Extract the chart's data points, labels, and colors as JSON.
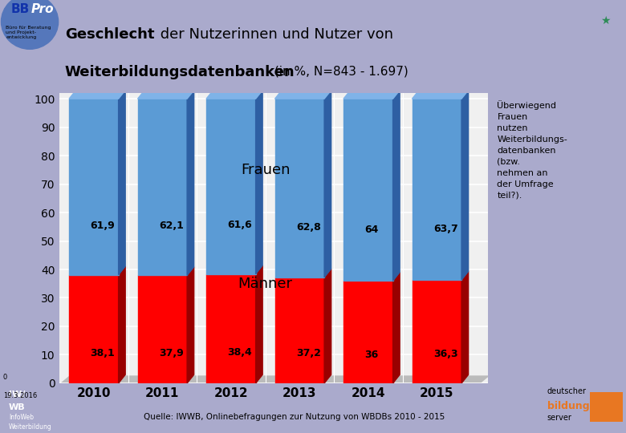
{
  "years": [
    "2010",
    "2011",
    "2012",
    "2013",
    "2014",
    "2015"
  ],
  "frauen": [
    61.9,
    62.1,
    61.6,
    62.8,
    64.0,
    63.7
  ],
  "maenner": [
    38.1,
    37.9,
    38.4,
    37.2,
    36.0,
    36.3
  ],
  "frauen_labels": [
    "61,9",
    "62,1",
    "61,6",
    "62,8",
    "64",
    "63,7"
  ],
  "maenner_labels": [
    "38,1",
    "37,9",
    "38,4",
    "37,2",
    "36",
    "36,3"
  ],
  "bar_color_frauen_front": "#5B9BD5",
  "bar_color_frauen_side": "#2E5FA3",
  "bar_color_frauen_top": "#7FB3E8",
  "bar_color_maenner_front": "#FF0000",
  "bar_color_maenner_side": "#990000",
  "bar_color_maenner_top": "#CC3333",
  "annotation_frauen": "Frauen",
  "annotation_maenner": "Männer",
  "side_text": "Überwiegend\nFrauen\nnutzen\nWeiterbildungs-\ndatenbanken\n(bzw.\nnehmen an\nder Umfrage\nteil?).",
  "source_text": "Quelle: IWWB, Onlinebefragungen zur Nutzung von WBDBs 2010 - 2015",
  "background_color": "#AAAACC",
  "plot_bg_color": "#F0F0F0",
  "ylim": [
    0,
    100
  ],
  "yticks": [
    0,
    10,
    20,
    30,
    40,
    50,
    60,
    70,
    80,
    90,
    100
  ]
}
